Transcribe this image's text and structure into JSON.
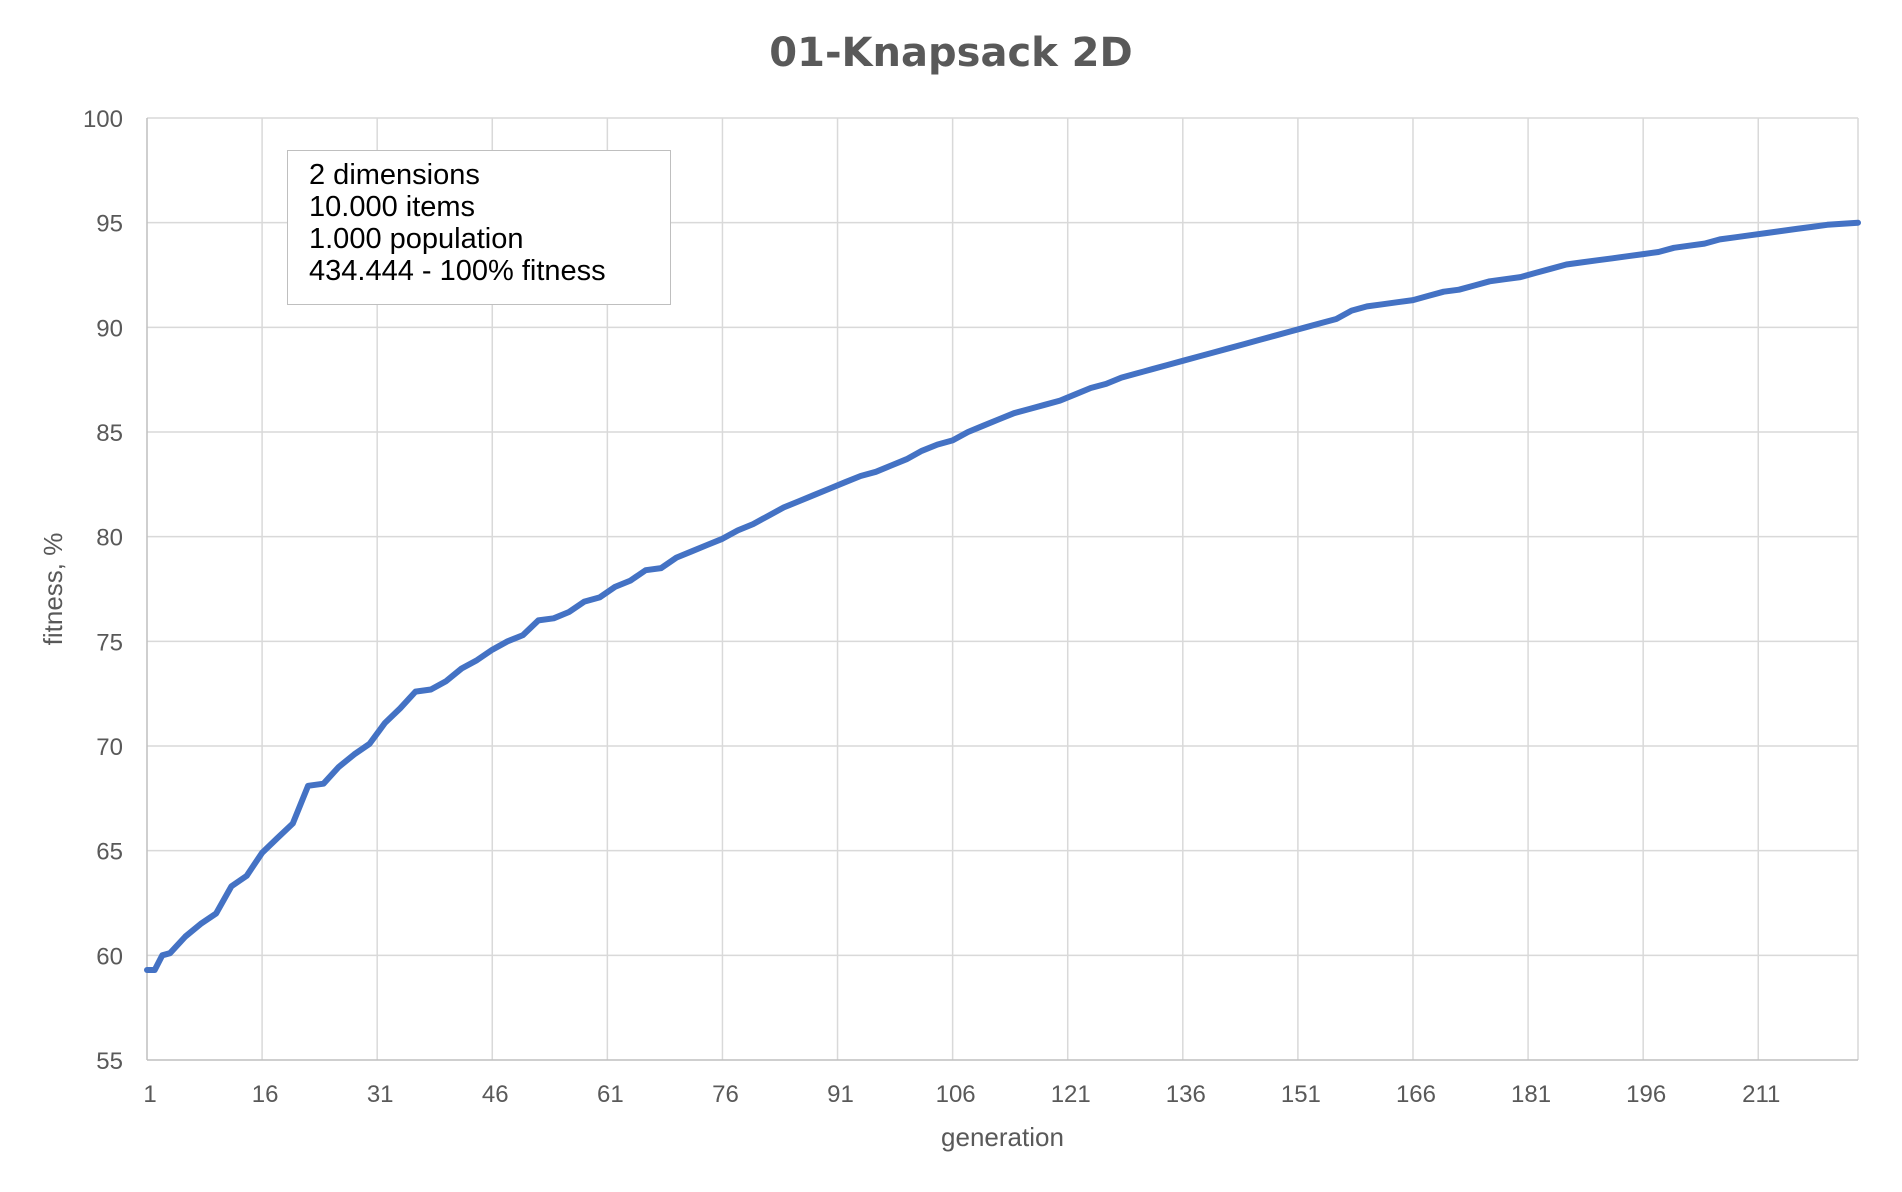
{
  "chart_data": {
    "type": "line",
    "title": "01-Knapsack 2D",
    "xlabel": "generation",
    "ylabel": "fitness, %",
    "ylim": [
      55,
      100
    ],
    "yticks": [
      55,
      60,
      65,
      70,
      75,
      80,
      85,
      90,
      95,
      100
    ],
    "xlim": [
      1,
      224
    ],
    "xticks": [
      1,
      16,
      31,
      46,
      61,
      76,
      91,
      106,
      121,
      136,
      151,
      166,
      181,
      196,
      211
    ],
    "grid": true,
    "legend": "none",
    "annotation": [
      "2 dimensions",
      "10.000 items",
      "1.000 population",
      "434.444 - 100% fitness"
    ],
    "series": [
      {
        "color": "#4472c4",
        "x": [
          1,
          2,
          3,
          4,
          6,
          8,
          10,
          12,
          14,
          16,
          18,
          20,
          22,
          24,
          26,
          28,
          30,
          32,
          34,
          36,
          38,
          40,
          42,
          44,
          46,
          48,
          50,
          52,
          54,
          56,
          58,
          60,
          62,
          64,
          66,
          68,
          70,
          72,
          74,
          76,
          78,
          80,
          82,
          84,
          86,
          88,
          90,
          92,
          94,
          96,
          98,
          100,
          102,
          104,
          106,
          108,
          110,
          112,
          114,
          116,
          118,
          120,
          122,
          124,
          126,
          128,
          130,
          132,
          134,
          136,
          138,
          140,
          142,
          144,
          146,
          148,
          150,
          152,
          154,
          156,
          158,
          160,
          162,
          164,
          166,
          168,
          170,
          172,
          174,
          176,
          178,
          180,
          182,
          184,
          186,
          188,
          190,
          192,
          194,
          196,
          198,
          200,
          202,
          204,
          206,
          208,
          210,
          212,
          214,
          216,
          218,
          220,
          222,
          224
        ],
        "values": [
          59.3,
          59.3,
          60.0,
          60.1,
          60.9,
          61.5,
          62.0,
          63.3,
          63.8,
          64.9,
          65.6,
          66.3,
          68.1,
          68.2,
          69.0,
          69.6,
          70.1,
          71.1,
          71.8,
          72.6,
          72.7,
          73.1,
          73.7,
          74.1,
          74.6,
          75.0,
          75.3,
          76.0,
          76.1,
          76.4,
          76.9,
          77.1,
          77.6,
          77.9,
          78.4,
          78.5,
          79.0,
          79.3,
          79.6,
          79.9,
          80.3,
          80.6,
          81.0,
          81.4,
          81.7,
          82.0,
          82.3,
          82.6,
          82.9,
          83.1,
          83.4,
          83.7,
          84.1,
          84.4,
          84.6,
          85.0,
          85.3,
          85.6,
          85.9,
          86.1,
          86.3,
          86.5,
          86.8,
          87.1,
          87.3,
          87.6,
          87.8,
          88.0,
          88.2,
          88.4,
          88.6,
          88.8,
          89.0,
          89.2,
          89.4,
          89.6,
          89.8,
          90.0,
          90.2,
          90.4,
          90.8,
          91.0,
          91.1,
          91.2,
          91.3,
          91.5,
          91.7,
          91.8,
          92.0,
          92.2,
          92.3,
          92.4,
          92.6,
          92.8,
          93.0,
          93.1,
          93.2,
          93.3,
          93.4,
          93.5,
          93.6,
          93.8,
          93.9,
          94.0,
          94.2,
          94.3,
          94.4,
          94.5,
          94.6,
          94.7,
          94.8,
          94.9,
          94.95,
          95.0
        ]
      }
    ]
  }
}
